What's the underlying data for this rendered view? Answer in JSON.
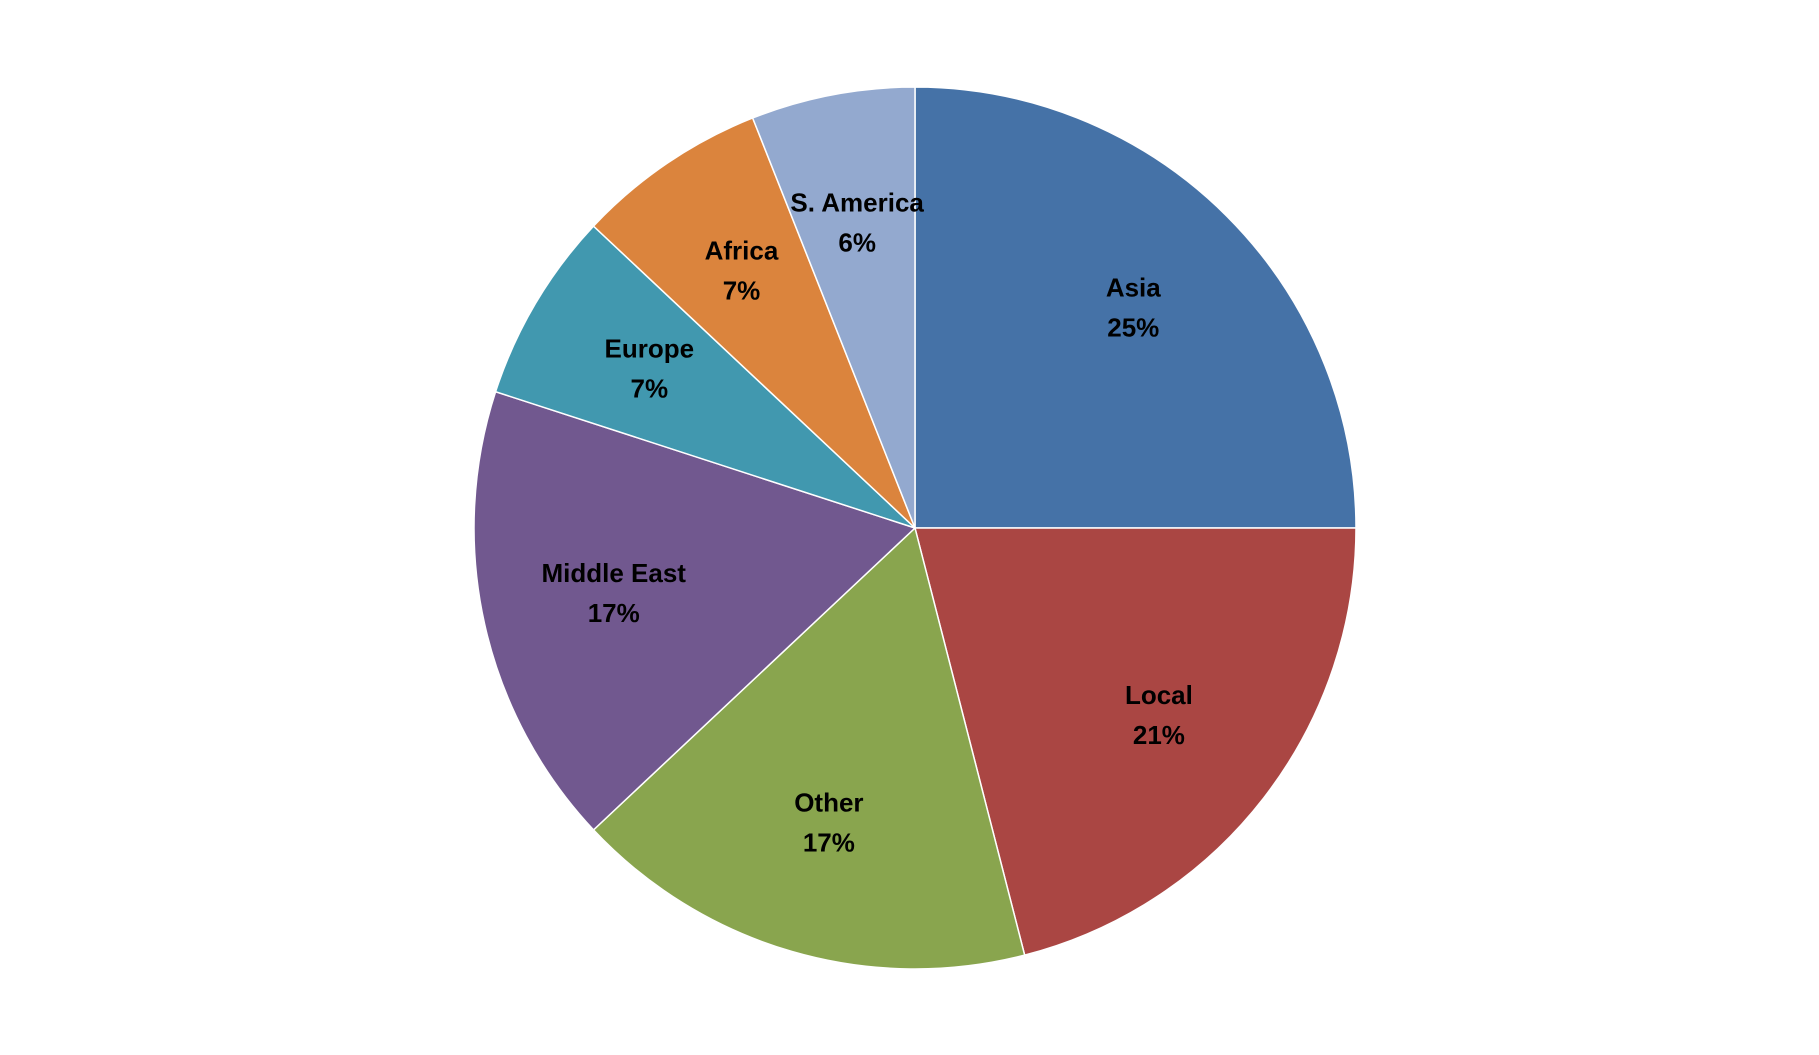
{
  "chart_data": {
    "type": "pie",
    "categories": [
      "Asia",
      "Local",
      "Other",
      "Middle East",
      "Europe",
      "Africa",
      "S. America"
    ],
    "values": [
      25,
      21,
      17,
      17,
      7,
      7,
      6
    ],
    "value_labels": [
      "25%",
      "21%",
      "17%",
      "17%",
      "7%",
      "7%",
      "6%"
    ],
    "colors": [
      "#4572a7",
      "#aa4643",
      "#89a54e",
      "#71588f",
      "#4198af",
      "#db843d",
      "#93a9cf"
    ]
  }
}
